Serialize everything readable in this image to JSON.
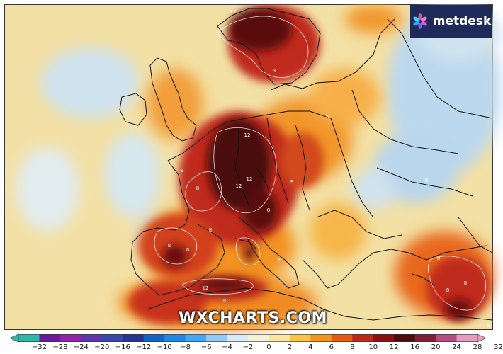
{
  "header": {
    "left_text": "",
    "right_text": ""
  },
  "brand": {
    "logo_text": "metdesk",
    "logo_bg": "#1e2a5a"
  },
  "watermark": "WXCHARTS.COM",
  "legend": {
    "ticks": [
      "−32",
      "−28",
      "−24",
      "−20",
      "−16",
      "−12",
      "−10",
      "−8",
      "−6",
      "−4",
      "−2",
      "0",
      "2",
      "4",
      "6",
      "8",
      "10",
      "12",
      "16",
      "20",
      "24",
      "28",
      "32"
    ],
    "colors": [
      "#2fb8a8",
      "#6a1b9a",
      "#8e24aa",
      "#5e35b1",
      "#3949ab",
      "#283593",
      "#1565c0",
      "#1e88e5",
      "#42a5f5",
      "#90caf9",
      "#d6eaf8",
      "#f4f1d8",
      "#fbe6a0",
      "#f7c34a",
      "#f29322",
      "#e25c12",
      "#c0291a",
      "#8b1010",
      "#4a0e0e",
      "#7e2038",
      "#b34d7b",
      "#e79bc0"
    ]
  },
  "map": {
    "contour_labels": [
      "12",
      "12",
      "12",
      "8",
      "8",
      "8",
      "8",
      "8",
      "8",
      "12",
      "8",
      "8",
      "8",
      "8",
      "8",
      "8",
      "12",
      "8",
      "8",
      "8",
      "8"
    ]
  }
}
